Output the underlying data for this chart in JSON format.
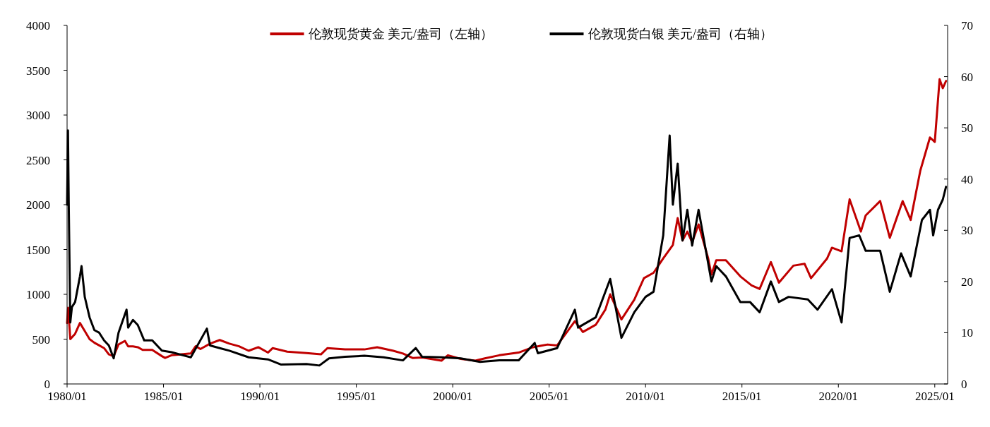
{
  "chart_data": {
    "type": "line",
    "legend": "top",
    "grid": false,
    "line_style": "solid",
    "marker": "none",
    "xlim": [
      "1980-01",
      "2025-09"
    ],
    "xticks": [
      {
        "value": "1980-01",
        "label": "1980/01"
      },
      {
        "value": "1985-01",
        "label": "1985/01"
      },
      {
        "value": "1990-01",
        "label": "1990/01"
      },
      {
        "value": "1995-01",
        "label": "1995/01"
      },
      {
        "value": "2000-01",
        "label": "2000/01"
      },
      {
        "value": "2005-01",
        "label": "2005/01"
      },
      {
        "value": "2010-01",
        "label": "2010/01"
      },
      {
        "value": "2015-01",
        "label": "2015/01"
      },
      {
        "value": "2020-01",
        "label": "2020/01"
      },
      {
        "value": "2025-01",
        "label": "2025/01"
      }
    ],
    "ylim": [
      0,
      4000
    ],
    "yticks": [
      0,
      500,
      1000,
      1500,
      2000,
      2500,
      3000,
      3500,
      4000
    ],
    "y2lim": [
      0,
      70
    ],
    "y2ticks": [
      0,
      10,
      20,
      30,
      40,
      50,
      60,
      70
    ],
    "series": [
      {
        "name": "伦敦现货黄金 美元/盎司（左轴）",
        "color": "#c00000",
        "axis": "y",
        "x": [
          "1980-01",
          "1980-01-21",
          "1980-03",
          "1980-06",
          "1980-09",
          "1980-12",
          "1981-03",
          "1981-06",
          "1981-09",
          "1981-12",
          "1982-03",
          "1982-06",
          "1982-09",
          "1983-01",
          "1983-03",
          "1983-06",
          "1983-09",
          "1983-12",
          "1984-06",
          "1984-12",
          "1985-02",
          "1985-06",
          "1985-12",
          "1986-06",
          "1986-09",
          "1986-12",
          "1987-06",
          "1987-12",
          "1988-06",
          "1988-12",
          "1989-06",
          "1989-12",
          "1990-06",
          "1990-09",
          "1991-06",
          "1992-06",
          "1993-03",
          "1993-07",
          "1994-06",
          "1995-06",
          "1996-02",
          "1996-12",
          "1997-06",
          "1997-12",
          "1998-06",
          "1999-06",
          "1999-10",
          "2000-06",
          "2001-03",
          "2001-09",
          "2002-06",
          "2003-06",
          "2004-03",
          "2004-12",
          "2005-06",
          "2006-05",
          "2006-10",
          "2007-06",
          "2007-12",
          "2008-03",
          "2008-10",
          "2009-06",
          "2009-12",
          "2010-06",
          "2010-12",
          "2011-06",
          "2011-09",
          "2011-12",
          "2012-03",
          "2012-06",
          "2012-10",
          "2013-04",
          "2013-06",
          "2013-09",
          "2014-03",
          "2014-12",
          "2015-07",
          "2015-12",
          "2016-07",
          "2016-12",
          "2017-09",
          "2018-04",
          "2018-08",
          "2019-06",
          "2019-09",
          "2020-03",
          "2020-08",
          "2021-03",
          "2021-06",
          "2022-03",
          "2022-09",
          "2023-05",
          "2023-10",
          "2024-04",
          "2024-10",
          "2025-01",
          "2025-04",
          "2025-06",
          "2025-08"
        ],
        "values": [
          680,
          850,
          500,
          560,
          680,
          590,
          500,
          460,
          430,
          400,
          330,
          310,
          440,
          480,
          420,
          420,
          410,
          380,
          380,
          310,
          290,
          320,
          330,
          340,
          420,
          390,
          450,
          490,
          450,
          420,
          370,
          410,
          350,
          400,
          360,
          345,
          330,
          400,
          385,
          385,
          410,
          370,
          340,
          290,
          295,
          260,
          320,
          280,
          260,
          285,
          320,
          350,
          410,
          440,
          430,
          700,
          580,
          660,
          830,
          1000,
          720,
          940,
          1180,
          1240,
          1400,
          1550,
          1850,
          1600,
          1700,
          1580,
          1780,
          1400,
          1220,
          1380,
          1380,
          1200,
          1100,
          1060,
          1360,
          1130,
          1320,
          1340,
          1180,
          1400,
          1520,
          1480,
          2060,
          1700,
          1880,
          2040,
          1630,
          2040,
          1830,
          2380,
          2750,
          2700,
          3400,
          3300,
          3380
        ]
      },
      {
        "name": "伦敦现货白银 美元/盎司（右轴）",
        "color": "#000000",
        "axis": "y2",
        "x": [
          "1980-01",
          "1980-01-18",
          "1980-02",
          "1980-03",
          "1980-04",
          "1980-06",
          "1980-09",
          "1980-10",
          "1980-12",
          "1981-03",
          "1981-06",
          "1981-09",
          "1981-12",
          "1982-03",
          "1982-06",
          "1982-09",
          "1983-02",
          "1983-03",
          "1983-06",
          "1983-09",
          "1984-01",
          "1984-06",
          "1984-12",
          "1985-06",
          "1986-06",
          "1987-04",
          "1987-06",
          "1987-12",
          "1988-06",
          "1989-06",
          "1990-06",
          "1991-02",
          "1992-06",
          "1993-02",
          "1993-08",
          "1994-06",
          "1995-06",
          "1996-06",
          "1997-06",
          "1998-02",
          "1998-06",
          "1999-06",
          "2000-06",
          "2001-06",
          "2002-06",
          "2003-06",
          "2004-04",
          "2004-06",
          "2005-06",
          "2006-05",
          "2006-07",
          "2007-06",
          "2008-03",
          "2008-10",
          "2009-06",
          "2010-01",
          "2010-06",
          "2010-12",
          "2011-04",
          "2011-06",
          "2011-09",
          "2011-12",
          "2012-03",
          "2012-06",
          "2012-10",
          "2013-06",
          "2013-09",
          "2014-03",
          "2014-12",
          "2015-06",
          "2015-12",
          "2016-07",
          "2016-12",
          "2017-06",
          "2018-06",
          "2018-12",
          "2019-09",
          "2020-03",
          "2020-08",
          "2021-02",
          "2021-06",
          "2022-03",
          "2022-09",
          "2023-04",
          "2023-10",
          "2024-05",
          "2024-10",
          "2024-12",
          "2025-03",
          "2025-06",
          "2025-08"
        ],
        "values": [
          35,
          49.5,
          36,
          12,
          15,
          16,
          21,
          23,
          17,
          13,
          10.5,
          10,
          8.5,
          7.5,
          5,
          10,
          14.5,
          11,
          12.5,
          11.5,
          8.5,
          8.5,
          6.5,
          6.2,
          5.2,
          10.8,
          7.5,
          7,
          6.5,
          5.2,
          4.8,
          3.8,
          3.9,
          3.6,
          5,
          5.3,
          5.5,
          5.2,
          4.6,
          7,
          5.3,
          5.2,
          5,
          4.3,
          4.6,
          4.6,
          8,
          6,
          7,
          14.5,
          11,
          13,
          20.5,
          9,
          14,
          17,
          18,
          29,
          48.5,
          35,
          43,
          28,
          34,
          27,
          34,
          20,
          23,
          21,
          16,
          16,
          14,
          20,
          16,
          17,
          16.5,
          14.5,
          18.5,
          12,
          28.5,
          29,
          26,
          26,
          18,
          25.5,
          21,
          32,
          34,
          29,
          34,
          36,
          38.5
        ]
      }
    ]
  }
}
